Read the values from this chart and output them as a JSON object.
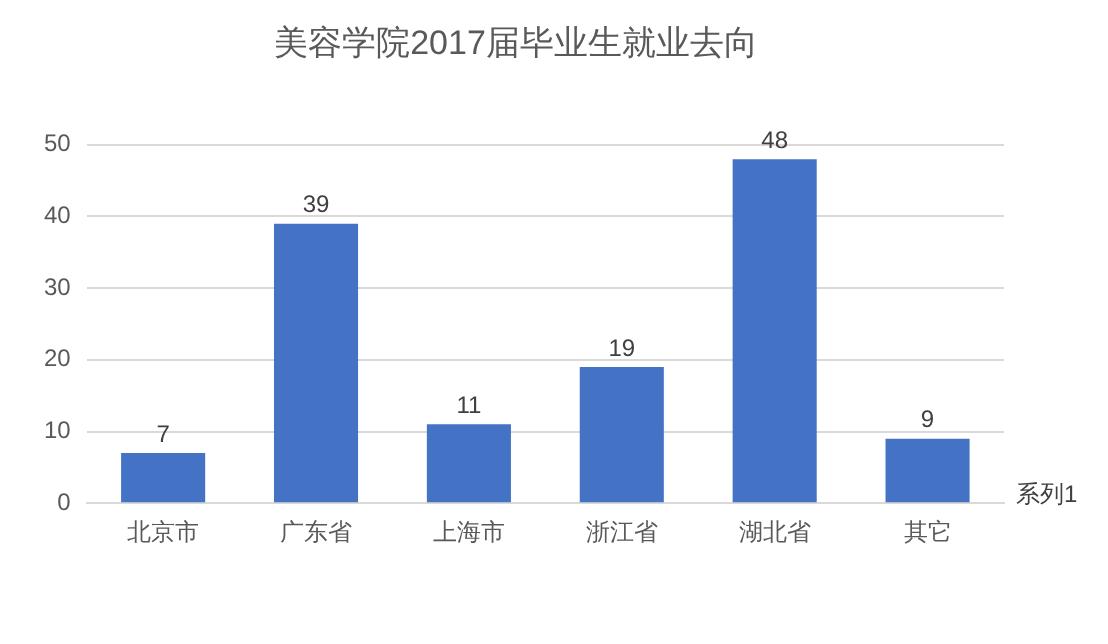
{
  "chart_data": {
    "type": "bar",
    "title": "美容学院2017届毕业生就业去向",
    "categories": [
      "北京市",
      "广东省",
      "上海市",
      "浙江省",
      "湖北省",
      "其它"
    ],
    "series": [
      {
        "name": "系列1",
        "color": "#4472c4",
        "values": [
          7,
          39,
          11,
          19,
          48,
          9
        ]
      }
    ],
    "ylim": [
      0,
      50
    ],
    "yticks": [
      0,
      10,
      20,
      30,
      40,
      50
    ],
    "grid": "y",
    "data_labels": true,
    "legend": false
  }
}
